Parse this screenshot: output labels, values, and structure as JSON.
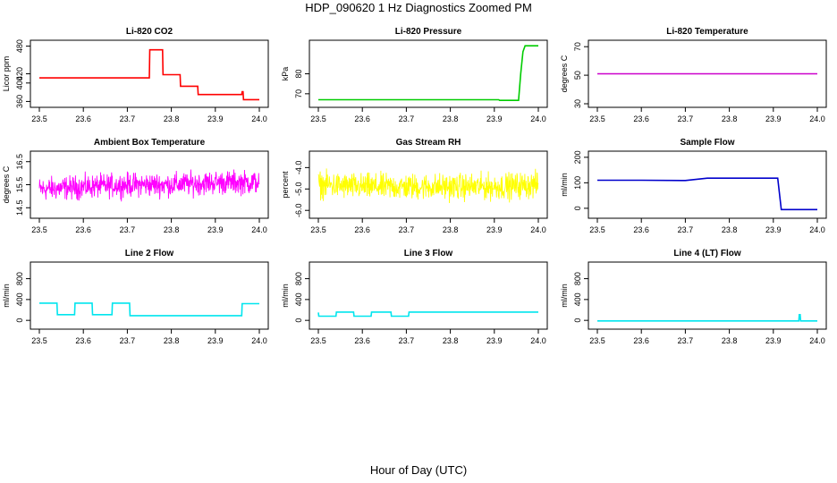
{
  "page": {
    "title": "HDP_090620  1 Hz Diagnostics Zoomed PM",
    "xlabel": "Hour of Day (UTC)"
  },
  "chart_data": [
    {
      "type": "line",
      "title": "Li-820 CO2",
      "xlabel": "",
      "ylabel": "Licor ppm",
      "color": "#ff0000",
      "xlim": [
        23.5,
        24.0
      ],
      "ylim": [
        355,
        485
      ],
      "yticks": [
        "360",
        "400",
        "420",
        "480"
      ],
      "ytick_values": [
        360,
        400,
        420,
        480
      ],
      "xticks": [
        "23.5",
        "23.6",
        "23.7",
        "23.8",
        "23.9",
        "24.0"
      ],
      "series": [
        {
          "x": [
            23.5,
            23.75,
            23.751,
            23.78,
            23.781,
            23.82,
            23.821,
            23.86,
            23.861,
            23.96,
            23.961,
            23.963,
            23.964,
            24.0
          ],
          "values": [
            411,
            411,
            472,
            472,
            418,
            418,
            393,
            393,
            375,
            375,
            381,
            381,
            364,
            364
          ]
        }
      ]
    },
    {
      "type": "line",
      "title": "Li-820 Pressure",
      "xlabel": "",
      "ylabel": "kPa",
      "color": "#00cc00",
      "xlim": [
        23.5,
        24.0
      ],
      "ylim": [
        65,
        95
      ],
      "yticks": [
        "70",
        "80"
      ],
      "ytick_values": [
        70,
        80
      ],
      "xticks": [
        "23.5",
        "23.6",
        "23.7",
        "23.8",
        "23.9",
        "24.0"
      ],
      "series": [
        {
          "x": [
            23.5,
            23.91,
            23.912,
            23.955,
            23.96,
            23.965,
            23.97,
            24.0
          ],
          "values": [
            67,
            67,
            66.7,
            66.7,
            80,
            91,
            94,
            94
          ]
        }
      ]
    },
    {
      "type": "line",
      "title": "Li-820 Temperature",
      "xlabel": "",
      "ylabel": "degrees C",
      "color": "#cc00cc",
      "xlim": [
        23.5,
        24.0
      ],
      "ylim": [
        30,
        72
      ],
      "yticks": [
        "30",
        "50",
        "70"
      ],
      "ytick_values": [
        30,
        50,
        70
      ],
      "xticks": [
        "23.5",
        "23.6",
        "23.7",
        "23.8",
        "23.9",
        "24.0"
      ],
      "series": [
        {
          "x": [
            23.5,
            24.0
          ],
          "values": [
            51,
            51
          ]
        }
      ]
    },
    {
      "type": "line",
      "title": "Ambient Box Temperature",
      "xlabel": "",
      "ylabel": "degrees C",
      "color": "#ff00ff",
      "noise": true,
      "xlim": [
        23.5,
        24.0
      ],
      "ylim": [
        14.2,
        16.8
      ],
      "yticks": [
        "14.5",
        "15.5",
        "16.5"
      ],
      "ytick_values": [
        14.5,
        15.5,
        16.5
      ],
      "xticks": [
        "23.5",
        "23.6",
        "23.7",
        "23.8",
        "23.9",
        "24.0"
      ],
      "series": [
        {
          "x": [
            23.5,
            23.6,
            23.7,
            23.8,
            23.9,
            24.0
          ],
          "values": [
            15.3,
            15.4,
            15.5,
            15.5,
            15.6,
            15.6
          ],
          "spread": 0.75
        }
      ]
    },
    {
      "type": "line",
      "title": "Gas Stream RH",
      "xlabel": "",
      "ylabel": "percent",
      "color": "#ffff00",
      "noise": true,
      "xlim": [
        23.5,
        24.0
      ],
      "ylim": [
        -6.2,
        -3.4
      ],
      "yticks": [
        "-6.0",
        "-5.0",
        "-4.0"
      ],
      "ytick_values": [
        -6.0,
        -5.0,
        -4.0
      ],
      "xticks": [
        "23.5",
        "23.6",
        "23.7",
        "23.8",
        "23.9",
        "24.0"
      ],
      "series": [
        {
          "x": [
            23.5,
            23.6,
            23.7,
            23.8,
            23.9,
            24.0
          ],
          "values": [
            -4.8,
            -4.9,
            -4.9,
            -4.9,
            -4.9,
            -4.8
          ],
          "spread": 0.9
        }
      ]
    },
    {
      "type": "line",
      "title": "Sample Flow",
      "xlabel": "",
      "ylabel": "ml/min",
      "color": "#0000cc",
      "xlim": [
        23.5,
        24.0
      ],
      "ylim": [
        -25,
        210
      ],
      "yticks": [
        "0",
        "100",
        "200"
      ],
      "ytick_values": [
        0,
        100,
        200
      ],
      "xticks": [
        "23.5",
        "23.6",
        "23.7",
        "23.8",
        "23.9",
        "24.0"
      ],
      "series": [
        {
          "x": [
            23.5,
            23.6,
            23.7,
            23.75,
            23.8,
            23.91,
            23.918,
            24.0
          ],
          "values": [
            110,
            110,
            109,
            118,
            118,
            118,
            -5,
            -5
          ]
        }
      ]
    },
    {
      "type": "line",
      "title": "Line 2 Flow",
      "xlabel": "",
      "ylabel": "ml/min",
      "color": "#00e5ee",
      "xlim": [
        23.5,
        24.0
      ],
      "ylim": [
        -100,
        1050
      ],
      "yticks": [
        "0",
        "400",
        "800"
      ],
      "ytick_values": [
        0,
        400,
        800
      ],
      "xticks": [
        "23.5",
        "23.6",
        "23.7",
        "23.8",
        "23.9",
        "24.0"
      ],
      "series": [
        {
          "x": [
            23.5,
            23.501,
            23.54,
            23.541,
            23.58,
            23.581,
            23.62,
            23.621,
            23.665,
            23.666,
            23.705,
            23.706,
            23.96,
            23.961,
            24.0
          ],
          "values": [
            330,
            330,
            330,
            110,
            110,
            330,
            330,
            110,
            110,
            330,
            330,
            90,
            90,
            320,
            320
          ]
        }
      ]
    },
    {
      "type": "line",
      "title": "Line 3 Flow",
      "xlabel": "",
      "ylabel": "ml/min",
      "color": "#00e5ee",
      "xlim": [
        23.5,
        24.0
      ],
      "ylim": [
        -100,
        1050
      ],
      "yticks": [
        "0",
        "400",
        "800"
      ],
      "ytick_values": [
        0,
        400,
        800
      ],
      "xticks": [
        "23.5",
        "23.6",
        "23.7",
        "23.8",
        "23.9",
        "24.0"
      ],
      "series": [
        {
          "x": [
            23.5,
            23.501,
            23.54,
            23.541,
            23.58,
            23.581,
            23.62,
            23.621,
            23.665,
            23.666,
            23.705,
            23.706,
            24.0
          ],
          "values": [
            150,
            80,
            80,
            160,
            160,
            80,
            80,
            160,
            160,
            80,
            80,
            160,
            160
          ]
        }
      ]
    },
    {
      "type": "line",
      "title": "Line 4 (LT) Flow",
      "xlabel": "",
      "ylabel": "ml/min",
      "color": "#00e5ee",
      "xlim": [
        23.5,
        24.0
      ],
      "ylim": [
        -100,
        1050
      ],
      "yticks": [
        "0",
        "400",
        "800"
      ],
      "ytick_values": [
        0,
        400,
        800
      ],
      "xticks": [
        "23.5",
        "23.6",
        "23.7",
        "23.8",
        "23.9",
        "24.0"
      ],
      "series": [
        {
          "x": [
            23.5,
            23.958,
            23.959,
            23.961,
            23.962,
            24.0
          ],
          "values": [
            -10,
            -10,
            110,
            110,
            -10,
            -10
          ]
        }
      ]
    }
  ]
}
